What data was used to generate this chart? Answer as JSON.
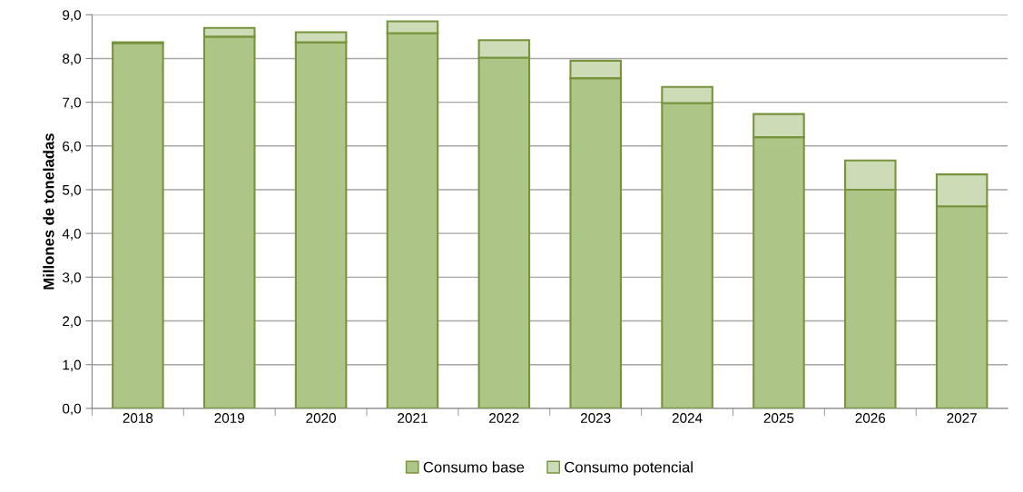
{
  "chart_data": {
    "type": "bar",
    "stacked": true,
    "ylabel": "Millones de toneladas",
    "categories": [
      "2018",
      "2019",
      "2020",
      "2021",
      "2022",
      "2023",
      "2024",
      "2025",
      "2026",
      "2027"
    ],
    "series": [
      {
        "name": "Consumo base",
        "color": "#adc687",
        "values": [
          8.35,
          8.5,
          8.37,
          8.58,
          8.02,
          7.55,
          6.98,
          6.2,
          5.0,
          4.62
        ]
      },
      {
        "name": "Consumo potencial",
        "color": "#cddbb7",
        "values": [
          0.02,
          0.2,
          0.23,
          0.27,
          0.4,
          0.4,
          0.37,
          0.53,
          0.67,
          0.73
        ]
      }
    ],
    "ylim": [
      0,
      9
    ],
    "yticks": [
      {
        "value": 0,
        "label": "0,0"
      },
      {
        "value": 1,
        "label": "1,0"
      },
      {
        "value": 2,
        "label": "2,0"
      },
      {
        "value": 3,
        "label": "3,0"
      },
      {
        "value": 4,
        "label": "4,0"
      },
      {
        "value": 5,
        "label": "5,0"
      },
      {
        "value": 6,
        "label": "6,0"
      },
      {
        "value": 7,
        "label": "7,0"
      },
      {
        "value": 8,
        "label": "8,0"
      },
      {
        "value": 9,
        "label": "9,0"
      }
    ],
    "grid": "y",
    "legend": "bottom"
  }
}
